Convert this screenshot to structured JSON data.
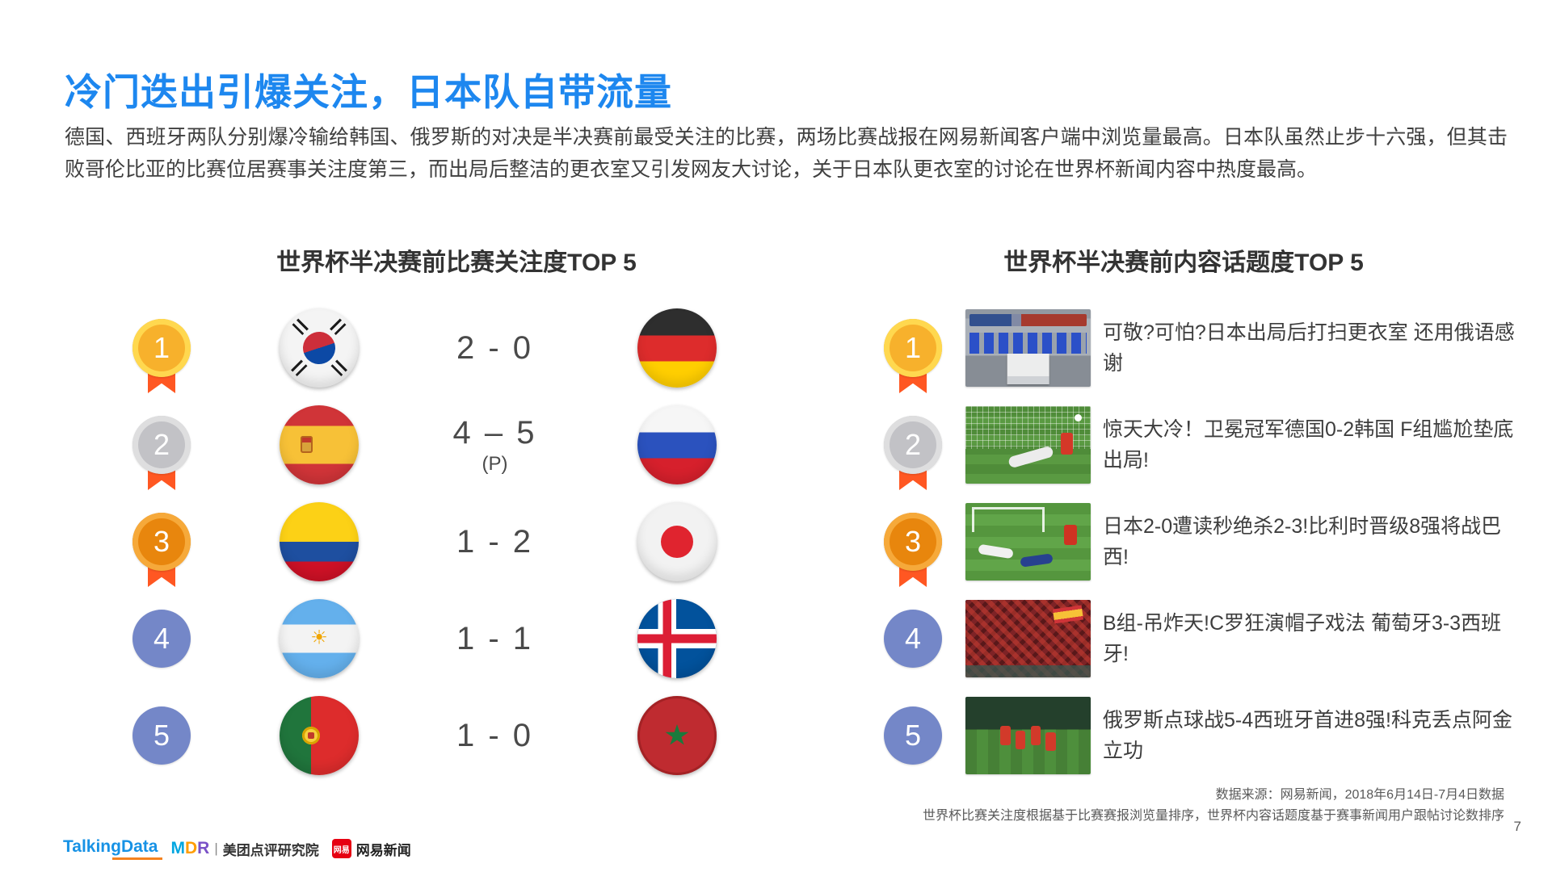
{
  "colors": {
    "title_blue": "#1d87ef",
    "heading_text": "#333333",
    "body_text": "#3f3f3f",
    "score_text": "#4a4a4a",
    "medal_gold": "#f7b12c",
    "medal_silver": "#c2c2c6",
    "medal_bronze": "#e8860d",
    "ribbon_orange": "#ff5722",
    "rank_blue": "#7487c8",
    "footer_text": "#595959",
    "netease_red": "#e60012"
  },
  "slide": {
    "title": "冷门迭出引爆关注，日本队自带流量",
    "paragraph": "德国、西班牙两队分别爆冷输给韩国、俄罗斯的对决是半决赛前最受关注的比赛，两场比赛战报在网易新闻客户端中浏览量最高。日本队虽然止步十六强，但其击败哥伦比亚的比赛位居赛事关注度第三，而出局后整洁的更衣室又引发网友大讨论，关于日本队更衣室的讨论在世界杯新闻内容中热度最高。",
    "page_number": "7"
  },
  "match_panel": {
    "title": "世界杯半决赛前比赛关注度TOP 5",
    "rows": [
      {
        "rank": "1",
        "medal": "gold",
        "team_left": "South Korea",
        "score": "2 - 0",
        "score_note": "",
        "team_right": "Germany"
      },
      {
        "rank": "2",
        "medal": "silver",
        "team_left": "Spain",
        "score": "4 – 5",
        "score_note": "(P)",
        "team_right": "Russia"
      },
      {
        "rank": "3",
        "medal": "bronze",
        "team_left": "Colombia",
        "score": "1 - 2",
        "score_note": "",
        "team_right": "Japan"
      },
      {
        "rank": "4",
        "medal": "blue",
        "team_left": "Argentina",
        "score": "1 - 1",
        "score_note": "",
        "team_right": "Iceland"
      },
      {
        "rank": "5",
        "medal": "blue",
        "team_left": "Portugal",
        "score": "1 - 0",
        "score_note": "",
        "team_right": "Morocco"
      }
    ]
  },
  "topic_panel": {
    "title": "世界杯半决赛前内容话题度TOP 5",
    "rows": [
      {
        "rank": "1",
        "medal": "gold",
        "thumbnail": "japan-locker-room-photo",
        "headline": "可敬?可怕?日本出局后打扫更衣室 还用俄语感谢"
      },
      {
        "rank": "2",
        "medal": "silver",
        "thumbnail": "germany-vs-korea-goal-photo",
        "headline": "惊天大冷！卫冕冠军德国0-2韩国 F组尴尬垫底出局!"
      },
      {
        "rank": "3",
        "medal": "bronze",
        "thumbnail": "japan-vs-belgium-pitch-photo",
        "headline": "日本2-0遭读秒绝杀2-3!比利时晋级8强将战巴西!"
      },
      {
        "rank": "4",
        "medal": "blue",
        "thumbnail": "spain-portugal-fans-photo",
        "headline": "B组-吊炸天!C罗狂演帽子戏法 葡萄牙3-3西班牙!"
      },
      {
        "rank": "5",
        "medal": "blue",
        "thumbnail": "russia-vs-spain-celebration-photo",
        "headline": "俄罗斯点球战5-4西班牙首进8强!科克丢点阿金立功"
      }
    ]
  },
  "footer": {
    "source_line1": "数据来源：网易新闻，2018年6月14日-7月4日数据",
    "source_line2": "世界杯比赛关注度根据基于比赛赛报浏览量排序，世界杯内容话题度基于赛事新闻用户跟帖讨论数排序",
    "logos": {
      "talkingdata": "TalkingData",
      "mdr_m": "M",
      "mdr_d": "D",
      "mdr_r": "R",
      "mdr_sep": "|",
      "meituan": "美团点评研究院",
      "netease_badge": "网易",
      "netease": "网易新闻"
    }
  }
}
